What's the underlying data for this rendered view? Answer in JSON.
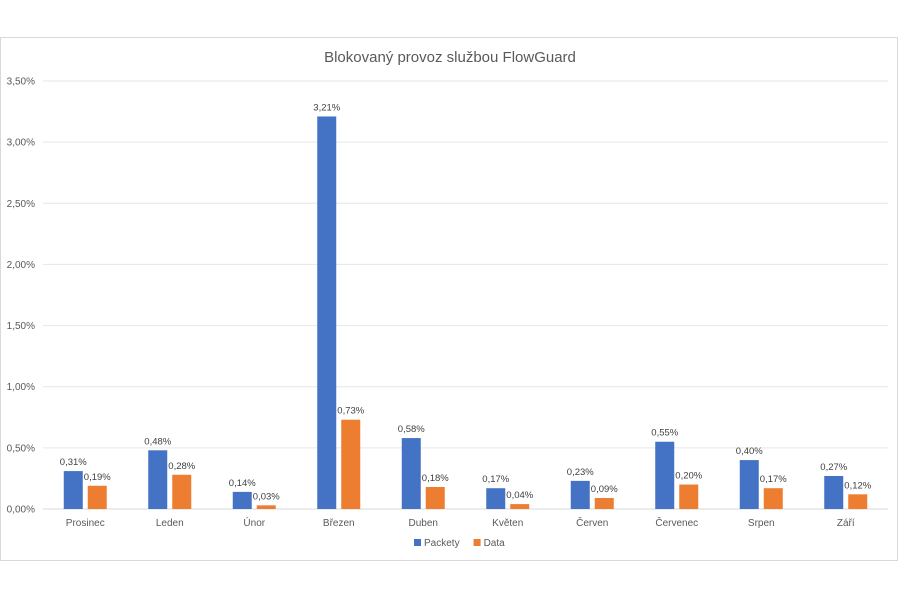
{
  "chart_data": {
    "type": "bar",
    "title": "Blokovaný provoz službou FlowGuard",
    "categories": [
      "Prosinec",
      "Leden",
      "Únor",
      "Březen",
      "Duben",
      "Květen",
      "Červen",
      "Červenec",
      "Srpen",
      "Září"
    ],
    "series": [
      {
        "name": "Packety",
        "color": "#4472c4",
        "values": [
          0.31,
          0.48,
          0.14,
          3.21,
          0.58,
          0.17,
          0.23,
          0.55,
          0.4,
          0.27
        ],
        "labels": [
          "0,31%",
          "0,48%",
          "0,14%",
          "3,21%",
          "0,58%",
          "0,17%",
          "0,23%",
          "0,55%",
          "0,40%",
          "0,27%"
        ]
      },
      {
        "name": "Data",
        "color": "#ed7d31",
        "values": [
          0.19,
          0.28,
          0.03,
          0.73,
          0.18,
          0.04,
          0.09,
          0.2,
          0.17,
          0.12
        ],
        "labels": [
          "0,19%",
          "0,28%",
          "0,03%",
          "0,73%",
          "0,18%",
          "0,04%",
          "0,09%",
          "0,20%",
          "0,17%",
          "0,12%"
        ]
      }
    ],
    "yticks": [
      "0,00%",
      "0,50%",
      "1,00%",
      "1,50%",
      "2,00%",
      "2,50%",
      "3,00%",
      "3,50%"
    ],
    "ylim": [
      0,
      3.5
    ],
    "ytick_step": 0.5,
    "grid": true,
    "legend_position": "bottom"
  }
}
